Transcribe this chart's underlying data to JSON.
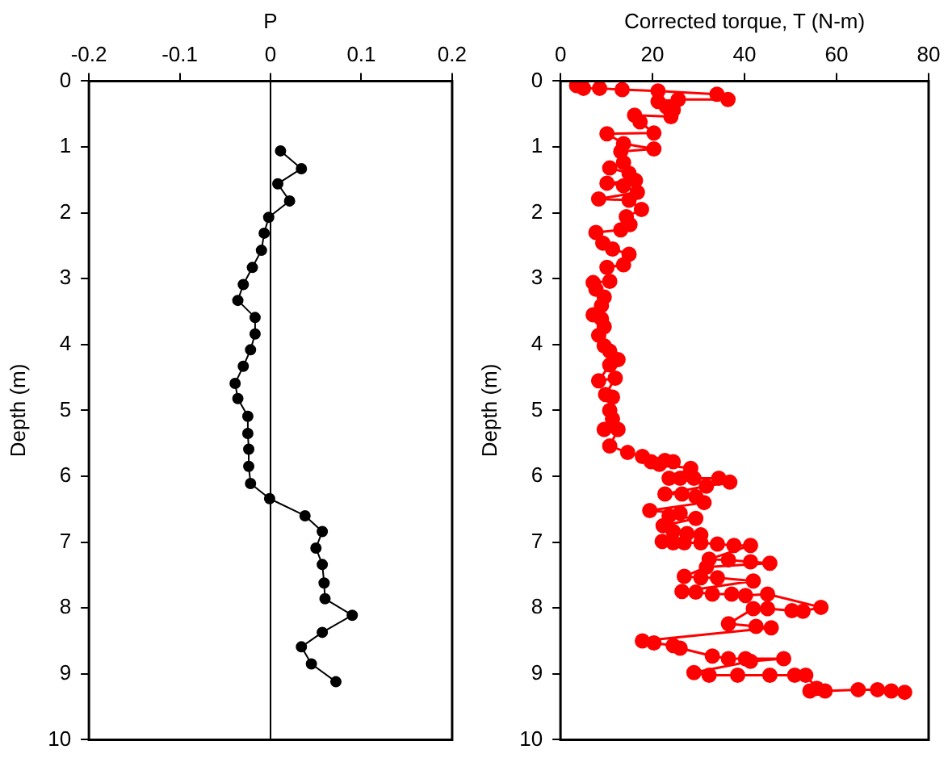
{
  "chart_data": [
    {
      "type": "line",
      "xlabel": "P",
      "ylabel": "Depth (m)",
      "xlim": [
        -0.2,
        0.2
      ],
      "xticks": [
        -0.2,
        -0.1,
        0,
        0.1,
        0.2
      ],
      "ylim": [
        10,
        0
      ],
      "yticks": [
        0,
        1,
        2,
        3,
        4,
        5,
        6,
        7,
        8,
        9,
        10
      ],
      "grid": false,
      "legend": false,
      "marker": "circle",
      "line_style": "solid",
      "ref_lines": [
        {
          "axis": "x",
          "value": 0,
          "color": "#000000"
        }
      ],
      "series": [
        {
          "color": "#000000",
          "x": [
            0.011,
            0.034,
            0.008,
            0.021,
            -0.002,
            -0.007,
            -0.01,
            -0.02,
            -0.03,
            -0.036,
            -0.017,
            -0.017,
            -0.022,
            -0.03,
            -0.039,
            -0.036,
            -0.025,
            -0.025,
            -0.024,
            -0.024,
            -0.022,
            -0.001,
            0.038,
            0.057,
            0.05,
            0.057,
            0.059,
            0.06,
            0.09,
            0.057,
            0.034,
            0.045,
            0.072
          ],
          "values": [
            1.06,
            1.33,
            1.56,
            1.82,
            2.07,
            2.31,
            2.57,
            2.83,
            3.09,
            3.33,
            3.59,
            3.84,
            4.08,
            4.33,
            4.59,
            4.82,
            5.09,
            5.35,
            5.59,
            5.85,
            6.11,
            6.34,
            6.6,
            6.84,
            7.09,
            7.34,
            7.62,
            7.86,
            8.11,
            8.37,
            8.59,
            8.85,
            9.12
          ]
        }
      ]
    },
    {
      "type": "line",
      "xlabel": "Corrected torque, T (N-m)",
      "ylabel": "Depth (m)",
      "xlim": [
        0,
        80
      ],
      "xticks": [
        0,
        20,
        40,
        60,
        80
      ],
      "ylim": [
        10,
        0
      ],
      "yticks": [
        0,
        1,
        2,
        3,
        4,
        5,
        6,
        7,
        8,
        9,
        10
      ],
      "grid": false,
      "legend": false,
      "marker": "circle",
      "line_style": "solid",
      "series": [
        {
          "color": "#ff0000",
          "x": [
            3.5,
            5.0,
            8.5,
            13.4,
            21.2,
            34.0,
            36.4,
            25.6,
            21.2,
            23.0,
            24.5,
            24.0,
            16.1,
            17.3,
            20.3,
            10.1,
            13.7,
            20.3,
            13.1,
            13.7,
            10.7,
            14.9,
            16.3,
            10.1,
            13.7,
            16.7,
            8.3,
            14.9,
            17.6,
            14.3,
            15.1,
            13.1,
            7.7,
            9.2,
            11.3,
            14.9,
            13.7,
            10.1,
            10.7,
            7.1,
            7.7,
            9.5,
            8.9,
            7.1,
            8.9,
            9.5,
            8.3,
            9.5,
            10.7,
            12.5,
            10.7,
            8.3,
            11.9,
            9.8,
            11.3,
            10.7,
            11.3,
            9.5,
            12.5,
            10.7,
            14.6,
            17.8,
            19.7,
            22.7,
            24.5,
            21.5,
            28.3,
            23.6,
            26.0,
            29.0,
            34.4,
            36.8,
            31.7,
            22.7,
            26.4,
            29.4,
            31.2,
            19.4,
            26.0,
            23.6,
            29.4,
            22.3,
            24.5,
            27.5,
            30.5,
            22.1,
            24.5,
            26.9,
            30.5,
            34.1,
            37.7,
            41.3,
            32.3,
            36.5,
            41.3,
            45.5,
            31.7,
            26.9,
            30.5,
            34.1,
            41.9,
            26.4,
            29.4,
            33.0,
            37.2,
            40.2,
            45.0,
            56.6,
            52.7,
            50.3,
            45.0,
            41.9,
            36.5,
            42.5,
            45.8,
            17.8,
            20.3,
            24.5,
            26.0,
            33.0,
            36.5,
            40.2,
            48.5,
            41.3,
            29.0,
            32.3,
            38.5,
            45.5,
            50.9,
            53.3,
            55.7,
            54.2,
            57.5,
            64.7,
            68.9,
            71.9,
            74.8
          ],
          "values": [
            0.07,
            0.11,
            0.11,
            0.13,
            0.15,
            0.2,
            0.28,
            0.28,
            0.31,
            0.39,
            0.44,
            0.54,
            0.52,
            0.62,
            0.79,
            0.8,
            0.95,
            1.03,
            1.07,
            1.24,
            1.32,
            1.4,
            1.51,
            1.55,
            1.59,
            1.69,
            1.79,
            1.81,
            1.95,
            2.06,
            2.18,
            2.26,
            2.3,
            2.46,
            2.55,
            2.63,
            2.79,
            2.83,
            3.04,
            3.06,
            3.16,
            3.28,
            3.41,
            3.55,
            3.61,
            3.73,
            3.86,
            4.02,
            4.1,
            4.23,
            4.31,
            4.55,
            4.51,
            4.76,
            4.8,
            5.0,
            5.13,
            5.29,
            5.29,
            5.54,
            5.64,
            5.7,
            5.78,
            5.76,
            5.78,
            5.82,
            5.88,
            6.03,
            6.03,
            6.03,
            6.03,
            6.09,
            6.15,
            6.27,
            6.27,
            6.31,
            6.4,
            6.52,
            6.56,
            6.6,
            6.64,
            6.75,
            6.84,
            6.87,
            6.89,
            6.99,
            7.01,
            7.01,
            7.01,
            7.03,
            7.05,
            7.05,
            7.26,
            7.27,
            7.3,
            7.32,
            7.38,
            7.52,
            7.54,
            7.54,
            7.59,
            7.75,
            7.76,
            7.79,
            7.79,
            7.81,
            7.79,
            7.99,
            8.05,
            8.04,
            8.01,
            8.01,
            8.24,
            8.28,
            8.3,
            8.5,
            8.53,
            8.57,
            8.61,
            8.73,
            8.77,
            8.77,
            8.77,
            8.81,
            8.98,
            9.02,
            9.02,
            9.02,
            9.02,
            9.02,
            9.22,
            9.26,
            9.26,
            9.24,
            9.24,
            9.26,
            9.28
          ]
        }
      ]
    }
  ]
}
